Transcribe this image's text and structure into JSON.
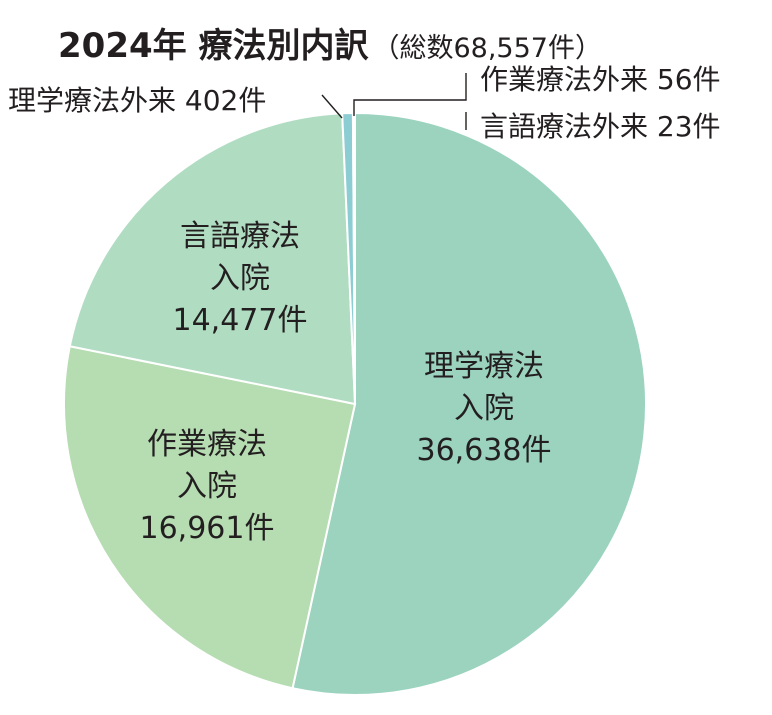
{
  "chart_data": {
    "type": "pie",
    "title": "2024年 療法別内訳",
    "subtitle": "（総数68,557件）",
    "total": 68557,
    "slices": [
      {
        "name": "理学療法入院",
        "label_lines": [
          "理学療法",
          "入院",
          "36,638件"
        ],
        "value": 36638,
        "color": "#9bd3bf"
      },
      {
        "name": "作業療法入院",
        "label_lines": [
          "作業療法",
          "入院",
          "16,961件"
        ],
        "value": 16961,
        "color": "#b6dcb2"
      },
      {
        "name": "言語療法入院",
        "label_lines": [
          "言語療法",
          "入院",
          "14,477件"
        ],
        "value": 14477,
        "color": "#b0dcc2"
      },
      {
        "name": "理学療法外来",
        "label_lines": [
          "理学療法外来 402件"
        ],
        "value": 402,
        "color": "#8ccdd3"
      },
      {
        "name": "作業療法外来",
        "label_lines": [
          "作業療法外来 56件"
        ],
        "value": 56,
        "color": "#c7e6cf"
      },
      {
        "name": "言語療法外来",
        "label_lines": [
          "言語療法外来 23件"
        ],
        "value": 23,
        "color": "#d9eee0"
      }
    ]
  }
}
